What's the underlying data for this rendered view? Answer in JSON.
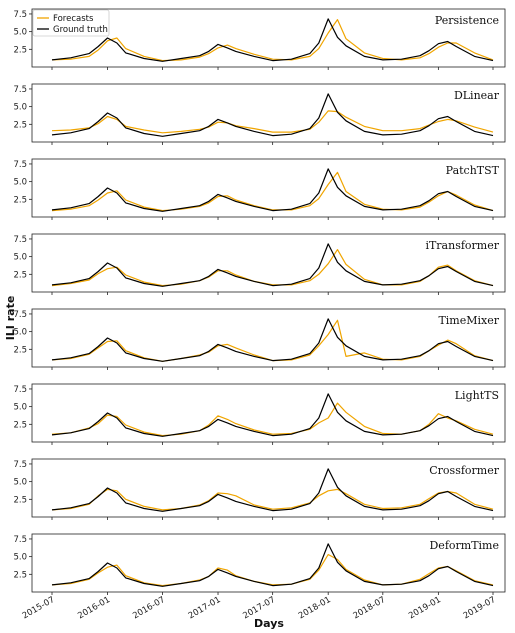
{
  "chart_data": {
    "type": "line",
    "xlabel": "Days",
    "ylabel": "ILI rate",
    "x_tick_labels": [
      "2015-07",
      "2016-01",
      "2016-07",
      "2017-01",
      "2017-07",
      "2018-01",
      "2018-07",
      "2019-01",
      "2019-07"
    ],
    "y_tick_labels": [
      "2.5",
      "5.0",
      "7.5"
    ],
    "ylim": [
      0,
      8.2
    ],
    "legend": {
      "position": "top-left",
      "entries": [
        "Forecasts",
        "Ground truth"
      ]
    },
    "colors": {
      "forecast": "#f0a500",
      "ground_truth": "#000000"
    },
    "x": [
      "2015-07",
      "2015-09",
      "2015-11",
      "2015-12",
      "2016-01",
      "2016-02",
      "2016-03",
      "2016-05",
      "2016-07",
      "2016-09",
      "2016-11",
      "2016-12",
      "2017-01",
      "2017-02",
      "2017-03",
      "2017-05",
      "2017-07",
      "2017-09",
      "2017-11",
      "2017-12",
      "2018-01",
      "2018-02",
      "2018-03",
      "2018-05",
      "2018-07",
      "2018-09",
      "2018-11",
      "2018-12",
      "2019-01",
      "2019-02",
      "2019-03",
      "2019-05",
      "2019-07"
    ],
    "ground_truth": [
      1.0,
      1.3,
      1.9,
      2.9,
      4.1,
      3.4,
      2.0,
      1.2,
      0.8,
      1.2,
      1.6,
      2.2,
      3.2,
      2.7,
      2.2,
      1.5,
      0.9,
      1.1,
      1.9,
      3.4,
      6.8,
      4.2,
      3.0,
      1.5,
      1.0,
      1.1,
      1.6,
      2.3,
      3.3,
      3.6,
      2.9,
      1.5,
      0.9
    ],
    "panels": [
      {
        "name": "Persistence",
        "forecast": [
          1.0,
          1.1,
          1.5,
          2.4,
          3.7,
          4.1,
          2.6,
          1.5,
          0.9,
          1.0,
          1.4,
          1.9,
          2.7,
          3.1,
          2.6,
          1.8,
          1.1,
          1.0,
          1.5,
          2.6,
          4.8,
          6.7,
          4.0,
          2.0,
          1.2,
          1.0,
          1.3,
          1.9,
          2.8,
          3.4,
          3.4,
          2.0,
          1.0
        ]
      },
      {
        "name": "DLinear",
        "forecast": [
          1.6,
          1.7,
          2.0,
          2.6,
          3.6,
          3.2,
          2.2,
          1.7,
          1.3,
          1.5,
          1.8,
          2.1,
          2.8,
          2.7,
          2.3,
          1.9,
          1.4,
          1.4,
          1.8,
          2.8,
          4.4,
          4.3,
          3.5,
          2.2,
          1.6,
          1.6,
          1.9,
          2.4,
          2.9,
          3.2,
          3.0,
          2.1,
          1.4
        ]
      },
      {
        "name": "PatchTST",
        "forecast": [
          0.9,
          1.1,
          1.6,
          2.4,
          3.4,
          3.7,
          2.4,
          1.4,
          0.9,
          1.1,
          1.5,
          2.0,
          2.9,
          3.0,
          2.4,
          1.6,
          1.0,
          1.0,
          1.6,
          2.6,
          4.6,
          6.3,
          3.6,
          1.8,
          1.1,
          1.0,
          1.4,
          2.1,
          3.0,
          3.6,
          3.1,
          1.7,
          0.9
        ]
      },
      {
        "name": "iTransformer",
        "forecast": [
          0.9,
          1.2,
          1.7,
          2.6,
          3.3,
          3.5,
          2.4,
          1.4,
          0.9,
          1.1,
          1.6,
          2.1,
          3.0,
          3.0,
          2.4,
          1.5,
          1.0,
          1.0,
          1.6,
          2.5,
          4.0,
          6.0,
          3.9,
          1.8,
          1.0,
          1.0,
          1.5,
          2.3,
          3.5,
          3.8,
          3.0,
          1.6,
          0.9
        ]
      },
      {
        "name": "TimeMixer",
        "forecast": [
          1.0,
          1.2,
          1.8,
          2.7,
          3.6,
          3.7,
          2.3,
          1.3,
          0.8,
          1.2,
          1.7,
          2.1,
          3.0,
          3.2,
          2.7,
          1.7,
          0.9,
          1.0,
          1.7,
          3.0,
          4.6,
          6.6,
          1.5,
          2.0,
          1.1,
          1.0,
          1.5,
          2.3,
          3.1,
          3.8,
          3.3,
          1.6,
          0.9
        ]
      },
      {
        "name": "LightTS",
        "forecast": [
          1.1,
          1.3,
          2.0,
          2.6,
          3.8,
          3.6,
          2.4,
          1.4,
          0.9,
          1.1,
          1.6,
          2.4,
          3.7,
          3.2,
          2.6,
          1.7,
          1.1,
          1.2,
          1.8,
          2.7,
          3.4,
          5.5,
          4.2,
          2.2,
          1.2,
          1.1,
          1.6,
          2.5,
          4.0,
          3.4,
          3.0,
          1.8,
          1.1
        ]
      },
      {
        "name": "Crossformer",
        "forecast": [
          1.0,
          1.2,
          1.8,
          3.0,
          3.9,
          3.7,
          2.5,
          1.5,
          1.0,
          1.2,
          1.7,
          2.3,
          3.4,
          3.3,
          3.0,
          1.7,
          1.1,
          1.3,
          2.0,
          3.0,
          3.7,
          3.9,
          3.3,
          1.8,
          1.2,
          1.3,
          1.8,
          2.6,
          3.4,
          3.6,
          3.4,
          1.8,
          1.1
        ]
      },
      {
        "name": "DeformTime",
        "forecast": [
          1.0,
          1.2,
          1.8,
          2.7,
          3.5,
          3.8,
          2.3,
          1.3,
          0.9,
          1.2,
          1.7,
          2.2,
          3.4,
          3.1,
          2.3,
          1.5,
          1.0,
          1.1,
          1.8,
          3.1,
          5.3,
          4.6,
          3.2,
          1.7,
          1.0,
          1.1,
          1.8,
          2.6,
          3.4,
          3.6,
          3.0,
          1.6,
          1.0
        ]
      }
    ]
  }
}
